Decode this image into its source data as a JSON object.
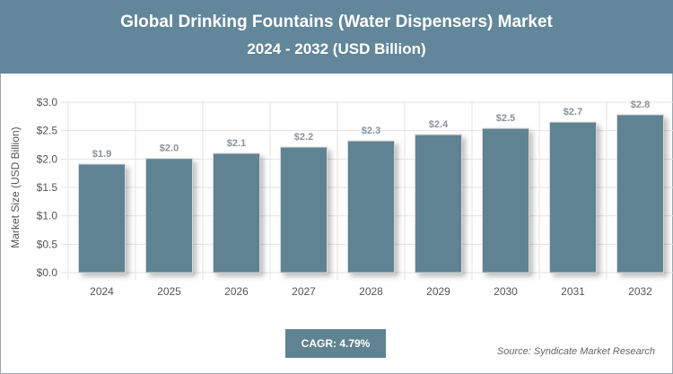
{
  "header": {
    "title": "Global Drinking Fountains (Water Dispensers) Market",
    "subtitle": "2024 - 2032 (USD Billion)"
  },
  "footer": {
    "cagr": "CAGR: 4.79%",
    "source": "Source: Syndicate Market Research"
  },
  "colors": {
    "header": "#62869a",
    "bar": "#5f8393"
  },
  "chart_data": {
    "type": "bar",
    "title": "Global Drinking Fountains (Water Dispensers) Market",
    "subtitle": "2024 - 2032 (USD Billion)",
    "xlabel": "",
    "ylabel": "Market Size (USD Billion)",
    "categories": [
      "2024",
      "2025",
      "2026",
      "2027",
      "2028",
      "2029",
      "2030",
      "2031",
      "2032"
    ],
    "values": [
      1.91,
      2.01,
      2.1,
      2.21,
      2.32,
      2.43,
      2.54,
      2.65,
      2.78
    ],
    "data_labels": [
      "$1.9",
      "$2.0",
      "$2.1",
      "$2.2",
      "$2.3",
      "$2.4",
      "$2.5",
      "$2.7",
      "$2.8"
    ],
    "yticks": [
      "$0.0",
      "$0.5",
      "$1.0",
      "$1.5",
      "$2.0",
      "$2.5",
      "$3.0"
    ],
    "ylim": [
      0,
      3
    ],
    "grid": true,
    "legend": "none"
  }
}
